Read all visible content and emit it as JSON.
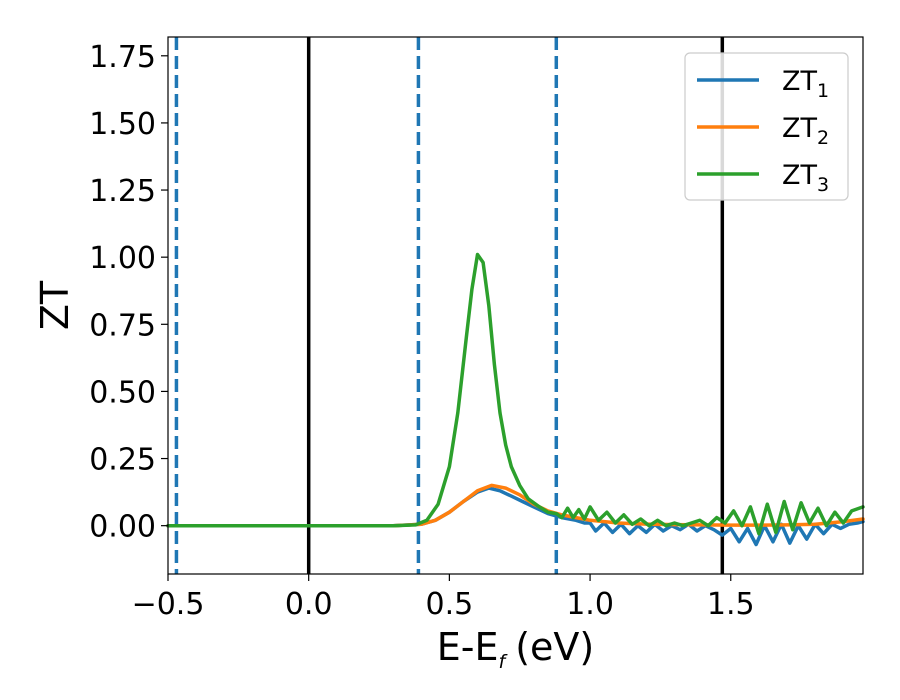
{
  "chart_data": {
    "type": "line",
    "xlabel": "E-E",
    "xlabel_subscript": "f",
    "xlabel_unit": "(eV)",
    "ylabel": "ZT",
    "xlim": [
      -0.5,
      1.97
    ],
    "ylim": [
      -0.18,
      1.82
    ],
    "xticks": [
      -0.5,
      0.0,
      0.5,
      1.0,
      1.5
    ],
    "xtick_labels": [
      "−0.5",
      "0.0",
      "0.5",
      "1.0",
      "1.5"
    ],
    "yticks": [
      0.0,
      0.25,
      0.5,
      0.75,
      1.0,
      1.25,
      1.5,
      1.75
    ],
    "ytick_labels": [
      "0.00",
      "0.25",
      "0.50",
      "0.75",
      "1.00",
      "1.25",
      "1.50",
      "1.75"
    ],
    "grid": false,
    "legend_position": "top-right",
    "vertical_lines": [
      {
        "x": -0.47,
        "style": "dashed",
        "color": "#1f77b4"
      },
      {
        "x": 0.0,
        "style": "solid",
        "color": "#000000"
      },
      {
        "x": 0.39,
        "style": "dashed",
        "color": "#1f77b4"
      },
      {
        "x": 0.88,
        "style": "dashed",
        "color": "#1f77b4"
      },
      {
        "x": 1.47,
        "style": "solid",
        "color": "#000000"
      }
    ],
    "series": [
      {
        "name": "ZT",
        "subscript": "1",
        "color": "#1f77b4",
        "x": [
          -0.5,
          0.0,
          0.3,
          0.4,
          0.45,
          0.5,
          0.55,
          0.6,
          0.64,
          0.68,
          0.72,
          0.76,
          0.8,
          0.85,
          0.9,
          0.95,
          0.98,
          1.0,
          1.02,
          1.05,
          1.08,
          1.11,
          1.14,
          1.17,
          1.2,
          1.23,
          1.26,
          1.29,
          1.32,
          1.35,
          1.38,
          1.41,
          1.44,
          1.47,
          1.5,
          1.53,
          1.56,
          1.59,
          1.62,
          1.65,
          1.68,
          1.71,
          1.74,
          1.77,
          1.8,
          1.83,
          1.86,
          1.89,
          1.92,
          1.95,
          1.97
        ],
        "values": [
          0.0,
          0.0,
          0.0,
          0.005,
          0.02,
          0.05,
          0.09,
          0.125,
          0.14,
          0.13,
          0.11,
          0.09,
          0.07,
          0.045,
          0.03,
          0.02,
          0.01,
          0.01,
          -0.02,
          0.01,
          -0.025,
          0.005,
          -0.03,
          0.0,
          -0.025,
          0.005,
          -0.02,
          0.0,
          -0.015,
          0.005,
          -0.02,
          0.0,
          -0.015,
          -0.035,
          -0.01,
          -0.06,
          -0.01,
          -0.07,
          0.0,
          -0.06,
          0.005,
          -0.065,
          0.0,
          -0.05,
          0.005,
          -0.03,
          0.005,
          -0.01,
          0.005,
          0.01,
          0.015
        ]
      },
      {
        "name": "ZT",
        "subscript": "2",
        "color": "#ff7f0e",
        "x": [
          -0.5,
          0.0,
          0.3,
          0.4,
          0.45,
          0.5,
          0.55,
          0.6,
          0.65,
          0.7,
          0.75,
          0.8,
          0.85,
          0.9,
          0.95,
          1.0,
          1.1,
          1.2,
          1.3,
          1.4,
          1.5,
          1.6,
          1.7,
          1.8,
          1.9,
          1.97
        ],
        "values": [
          0.0,
          0.0,
          0.0,
          0.005,
          0.02,
          0.05,
          0.09,
          0.13,
          0.15,
          0.14,
          0.115,
          0.08,
          0.055,
          0.04,
          0.03,
          0.02,
          0.01,
          0.006,
          0.004,
          0.003,
          0.002,
          0.002,
          0.003,
          0.005,
          0.015,
          0.025
        ]
      },
      {
        "name": "ZT",
        "subscript": "3",
        "color": "#2ca02c",
        "x": [
          -0.5,
          0.0,
          0.3,
          0.38,
          0.42,
          0.46,
          0.5,
          0.53,
          0.56,
          0.58,
          0.6,
          0.62,
          0.64,
          0.66,
          0.68,
          0.7,
          0.72,
          0.75,
          0.78,
          0.82,
          0.85,
          0.88,
          0.9,
          0.92,
          0.94,
          0.96,
          0.98,
          1.0,
          1.03,
          1.06,
          1.09,
          1.12,
          1.15,
          1.18,
          1.21,
          1.24,
          1.27,
          1.3,
          1.33,
          1.36,
          1.39,
          1.42,
          1.45,
          1.48,
          1.51,
          1.54,
          1.57,
          1.6,
          1.63,
          1.66,
          1.69,
          1.72,
          1.75,
          1.78,
          1.81,
          1.84,
          1.87,
          1.9,
          1.93,
          1.97
        ],
        "values": [
          0.0,
          0.0,
          0.0,
          0.003,
          0.02,
          0.08,
          0.22,
          0.42,
          0.7,
          0.88,
          1.01,
          0.98,
          0.82,
          0.6,
          0.42,
          0.3,
          0.22,
          0.15,
          0.1,
          0.07,
          0.05,
          0.045,
          0.03,
          0.065,
          0.03,
          0.06,
          0.025,
          0.07,
          0.02,
          0.05,
          0.01,
          0.04,
          0.005,
          0.025,
          0.0,
          0.02,
          0.0,
          0.01,
          0.0,
          0.01,
          0.02,
          0.0,
          0.03,
          0.01,
          0.055,
          0.0,
          0.07,
          -0.03,
          0.08,
          -0.025,
          0.09,
          -0.015,
          0.085,
          0.01,
          0.065,
          0.0,
          0.05,
          0.01,
          0.055,
          0.07
        ]
      }
    ]
  }
}
